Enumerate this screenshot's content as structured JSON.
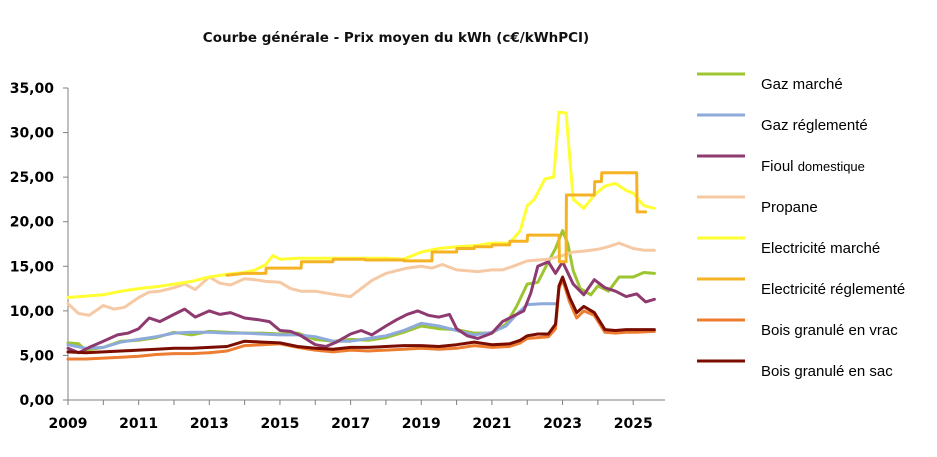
{
  "chart_data": {
    "type": "line",
    "title": "Courbe générale - Prix moyen du kWh (c€/kWhPCI)",
    "xlabel": "",
    "ylabel": "",
    "xlim": [
      2009,
      2025.9
    ],
    "ylim": [
      0,
      35
    ],
    "x_ticks": [
      "2009",
      "2011",
      "2013",
      "2015",
      "2017",
      "2019",
      "2021",
      "2023",
      "2025"
    ],
    "y_ticks": [
      "0,00",
      "5,00",
      "10,00",
      "15,00",
      "20,00",
      "25,00",
      "30,00",
      "35,00"
    ],
    "grid": false,
    "legend_position": "right",
    "series": [
      {
        "name": "Gaz marché",
        "name_parts": [
          "Gaz marché"
        ],
        "color": "#9dc431",
        "x": [
          2009,
          2009.3,
          2009.5,
          2010,
          2010.5,
          2011,
          2011.5,
          2012,
          2012.5,
          2013,
          2013.5,
          2014,
          2014.5,
          2015,
          2015.5,
          2016,
          2016.5,
          2017,
          2017.5,
          2018,
          2018.5,
          2019,
          2019.5,
          2020,
          2020.5,
          2021,
          2021.4,
          2021.7,
          2022,
          2022.3,
          2022.6,
          2022.8,
          2023,
          2023.15,
          2023.3,
          2023.5,
          2023.8,
          2024,
          2024.3,
          2024.6,
          2025,
          2025.3,
          2025.6
        ],
        "y": [
          6.4,
          6.3,
          5.6,
          5.9,
          6.6,
          6.7,
          7.0,
          7.6,
          7.3,
          7.7,
          7.6,
          7.5,
          7.5,
          7.4,
          7.5,
          6.8,
          6.6,
          6.8,
          6.7,
          7.0,
          7.6,
          8.3,
          8.0,
          7.9,
          7.5,
          7.5,
          8.5,
          10.5,
          13.0,
          13.2,
          15.5,
          17.0,
          19.0,
          17.5,
          14.5,
          12.5,
          11.8,
          12.8,
          12.2,
          13.8,
          13.8,
          14.3,
          14.2
        ]
      },
      {
        "name": "Gaz réglementé",
        "name_parts": [
          "Gaz réglementé"
        ],
        "color": "#8eaadb",
        "x": [
          2009,
          2009.5,
          2010,
          2010.5,
          2011,
          2011.5,
          2012,
          2012.5,
          2013,
          2013.5,
          2014,
          2014.5,
          2015,
          2015.5,
          2016,
          2016.5,
          2017,
          2017.5,
          2018,
          2018.5,
          2019,
          2019.5,
          2020,
          2020.5,
          2021,
          2021.4,
          2021.7,
          2022,
          2022.4,
          2022.8
        ],
        "y": [
          6.2,
          5.8,
          5.9,
          6.5,
          6.8,
          7.1,
          7.5,
          7.6,
          7.6,
          7.5,
          7.5,
          7.4,
          7.3,
          7.3,
          7.1,
          6.6,
          6.6,
          6.9,
          7.2,
          7.8,
          8.6,
          8.3,
          7.8,
          7.3,
          7.6,
          8.3,
          9.6,
          10.7,
          10.8,
          10.8
        ]
      },
      {
        "name": "Fioul domestique",
        "name_parts": [
          "Fioul ",
          "domestique"
        ],
        "color": "#8e3a70",
        "x": [
          2009,
          2009.3,
          2009.6,
          2010,
          2010.4,
          2010.7,
          2011,
          2011.3,
          2011.6,
          2012,
          2012.3,
          2012.6,
          2013,
          2013.3,
          2013.6,
          2014,
          2014.4,
          2014.7,
          2015,
          2015.3,
          2015.6,
          2016,
          2016.3,
          2016.6,
          2017,
          2017.3,
          2017.6,
          2018,
          2018.3,
          2018.6,
          2018.9,
          2019.2,
          2019.5,
          2019.8,
          2020,
          2020.3,
          2020.6,
          2021,
          2021.3,
          2021.6,
          2021.9,
          2022.1,
          2022.3,
          2022.6,
          2022.8,
          2023,
          2023.3,
          2023.6,
          2023.9,
          2024.2,
          2024.5,
          2024.8,
          2025.1,
          2025.35,
          2025.6
        ],
        "y": [
          5.8,
          5.3,
          5.9,
          6.6,
          7.3,
          7.5,
          8.0,
          9.2,
          8.8,
          9.6,
          10.2,
          9.3,
          10.0,
          9.6,
          9.8,
          9.2,
          9.0,
          8.8,
          7.8,
          7.7,
          7.2,
          6.2,
          6.0,
          6.5,
          7.4,
          7.8,
          7.3,
          8.3,
          9.0,
          9.6,
          10.0,
          9.5,
          9.3,
          9.6,
          8.0,
          7.2,
          6.9,
          7.5,
          8.8,
          9.4,
          10.0,
          12.0,
          15.0,
          15.5,
          14.2,
          15.5,
          13.0,
          11.8,
          13.5,
          12.6,
          12.2,
          11.6,
          11.9,
          11.0,
          11.3
        ]
      },
      {
        "name": "Propane",
        "name_parts": [
          "Propane"
        ],
        "color": "#f6c9a5",
        "x": [
          2009,
          2009.3,
          2009.6,
          2010,
          2010.3,
          2010.6,
          2011,
          2011.3,
          2011.6,
          2012,
          2012.3,
          2012.6,
          2013,
          2013.3,
          2013.6,
          2014,
          2014.3,
          2014.6,
          2015,
          2015.3,
          2015.6,
          2016,
          2016.3,
          2016.6,
          2017,
          2017.3,
          2017.6,
          2018,
          2018.3,
          2018.6,
          2019,
          2019.3,
          2019.6,
          2020,
          2020.3,
          2020.6,
          2021,
          2021.3,
          2021.6,
          2022,
          2022.3,
          2022.6,
          2023,
          2023.3,
          2023.6,
          2024,
          2024.3,
          2024.6,
          2025,
          2025.3,
          2025.6
        ],
        "y": [
          10.8,
          9.7,
          9.5,
          10.6,
          10.2,
          10.4,
          11.5,
          12.1,
          12.2,
          12.6,
          13.0,
          12.4,
          13.8,
          13.1,
          12.9,
          13.6,
          13.5,
          13.3,
          13.2,
          12.5,
          12.2,
          12.2,
          12.0,
          11.8,
          11.6,
          12.5,
          13.4,
          14.2,
          14.5,
          14.8,
          15.0,
          14.8,
          15.2,
          14.6,
          14.5,
          14.4,
          14.6,
          14.6,
          15.0,
          15.6,
          15.7,
          15.8,
          16.2,
          16.6,
          16.7,
          16.9,
          17.2,
          17.6,
          17.0,
          16.8,
          16.8
        ]
      },
      {
        "name": "Electricité marché",
        "name_parts": [
          "Electricité marché"
        ],
        "color": "#ffff33",
        "x": [
          2009,
          2010,
          2010.5,
          2011,
          2011.5,
          2012,
          2012.5,
          2013,
          2013.5,
          2014,
          2014.3,
          2014.6,
          2014.8,
          2015,
          2015.5,
          2016,
          2016.5,
          2017,
          2017.5,
          2018,
          2018.5,
          2019,
          2019.5,
          2020,
          2020.5,
          2021,
          2021.5,
          2021.8,
          2022,
          2022.2,
          2022.5,
          2022.75,
          2022.9,
          2023.1,
          2023.3,
          2023.6,
          2023.9,
          2024.2,
          2024.5,
          2024.8,
          2025,
          2025.3,
          2025.6
        ],
        "y": [
          11.5,
          11.8,
          12.2,
          12.5,
          12.7,
          13.0,
          13.3,
          13.8,
          14.1,
          14.3,
          14.6,
          15.2,
          16.2,
          15.8,
          15.9,
          15.9,
          15.9,
          15.9,
          15.9,
          15.9,
          15.8,
          16.6,
          17.0,
          17.2,
          17.3,
          17.6,
          17.6,
          19.0,
          21.8,
          22.5,
          24.8,
          25.0,
          32.3,
          32.2,
          22.5,
          21.5,
          23.0,
          24.0,
          24.3,
          23.5,
          23.2,
          21.8,
          21.5
        ]
      },
      {
        "name": "Electricité réglementé",
        "name_parts": [
          "Electricité réglementé"
        ],
        "color": "#f5b324",
        "x": [
          2013.5,
          2014,
          2014.6,
          2014.61,
          2015,
          2015.6,
          2015.61,
          2016.5,
          2016.51,
          2017.4,
          2017.41,
          2018.5,
          2018.51,
          2019.3,
          2019.31,
          2020,
          2020.01,
          2020.5,
          2020.51,
          2021,
          2021.01,
          2021.5,
          2021.51,
          2022,
          2022.01,
          2022.9,
          2022.91,
          2023.1,
          2023.11,
          2023.9,
          2023.91,
          2024.1,
          2024.11,
          2025.1,
          2025.11,
          2025.35
        ],
        "y": [
          14.0,
          14.2,
          14.2,
          14.8,
          14.8,
          14.8,
          15.5,
          15.5,
          15.8,
          15.8,
          15.7,
          15.7,
          15.6,
          15.6,
          16.6,
          16.6,
          17.0,
          17.0,
          17.2,
          17.2,
          17.4,
          17.4,
          17.8,
          17.8,
          18.5,
          18.5,
          15.5,
          15.5,
          23.0,
          23.0,
          24.5,
          24.5,
          25.5,
          25.5,
          21.1,
          21.1
        ]
      },
      {
        "name": "Bois granulé en vrac",
        "name_parts": [
          "Bois granulé en vrac"
        ],
        "color": "#ed7d31",
        "x": [
          2009,
          2009.5,
          2010,
          2010.5,
          2011,
          2011.5,
          2012,
          2012.5,
          2013,
          2013.5,
          2014,
          2014.5,
          2015,
          2015.5,
          2016,
          2016.5,
          2017,
          2017.5,
          2018,
          2018.5,
          2019,
          2019.5,
          2020,
          2020.5,
          2021,
          2021.5,
          2021.8,
          2022,
          2022.3,
          2022.6,
          2022.8,
          2022.9,
          2023,
          2023.2,
          2023.4,
          2023.6,
          2023.9,
          2024.2,
          2024.5,
          2024.8,
          2025.1,
          2025.6
        ],
        "y": [
          4.6,
          4.6,
          4.7,
          4.8,
          4.9,
          5.1,
          5.2,
          5.2,
          5.3,
          5.5,
          6.1,
          6.2,
          6.3,
          5.9,
          5.6,
          5.4,
          5.6,
          5.5,
          5.6,
          5.7,
          5.8,
          5.7,
          5.8,
          6.1,
          5.9,
          6.0,
          6.4,
          6.9,
          7.0,
          7.1,
          8.0,
          12.5,
          13.5,
          11.0,
          9.2,
          10.0,
          9.5,
          7.6,
          7.5,
          7.6,
          7.6,
          7.7
        ]
      },
      {
        "name": "Bois granulé en sac",
        "name_parts": [
          "Bois granulé en sac"
        ],
        "color": "#7b0c00",
        "x": [
          2009,
          2009.5,
          2010,
          2010.5,
          2011,
          2011.5,
          2012,
          2012.5,
          2013,
          2013.5,
          2014,
          2014.5,
          2015,
          2015.5,
          2016,
          2016.5,
          2017,
          2017.5,
          2018,
          2018.5,
          2019,
          2019.5,
          2020,
          2020.5,
          2021,
          2021.5,
          2021.8,
          2022,
          2022.3,
          2022.6,
          2022.8,
          2022.9,
          2023,
          2023.2,
          2023.4,
          2023.6,
          2023.9,
          2024.2,
          2024.5,
          2024.8,
          2025.1,
          2025.6
        ],
        "y": [
          5.4,
          5.3,
          5.4,
          5.5,
          5.6,
          5.7,
          5.8,
          5.8,
          5.9,
          6.0,
          6.6,
          6.5,
          6.4,
          6.0,
          5.8,
          5.7,
          5.9,
          5.9,
          6.0,
          6.1,
          6.1,
          6.0,
          6.2,
          6.5,
          6.2,
          6.3,
          6.7,
          7.2,
          7.4,
          7.4,
          8.5,
          12.8,
          13.8,
          11.5,
          9.8,
          10.5,
          9.8,
          7.9,
          7.8,
          7.9,
          7.9,
          7.9
        ]
      }
    ]
  }
}
